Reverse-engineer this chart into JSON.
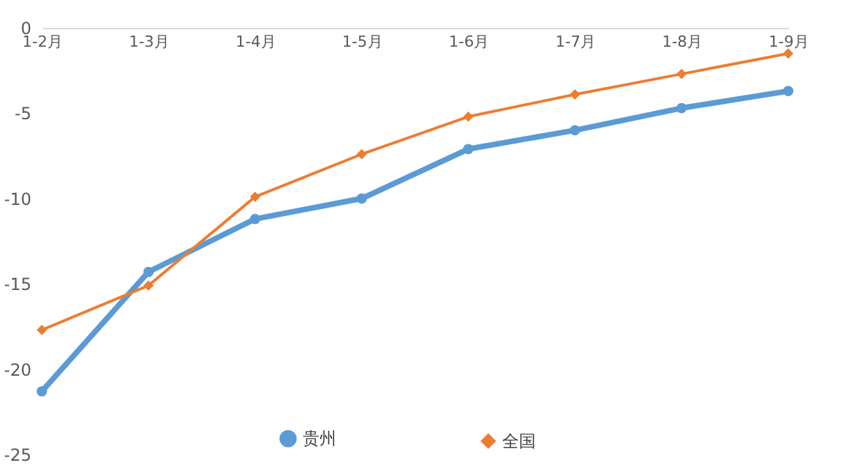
{
  "chart_data": {
    "type": "line",
    "categories": [
      "1-2月",
      "1-3月",
      "1-4月",
      "1-5月",
      "1-6月",
      "1-7月",
      "1-8月",
      "1-9月"
    ],
    "series": [
      {
        "name": "贵州",
        "color": "#5b9bd5",
        "marker": "circle",
        "values": [
          -21.3,
          -14.3,
          -11.2,
          -10.0,
          -7.1,
          -6.0,
          -4.7,
          -3.7
        ]
      },
      {
        "name": "全国",
        "color": "#ed7d31",
        "marker": "diamond",
        "values": [
          -17.7,
          -15.1,
          -9.9,
          -7.4,
          -5.2,
          -3.9,
          -2.7,
          -1.5
        ]
      }
    ],
    "ylim": [
      -25,
      0
    ],
    "yticks": [
      -25,
      -20,
      -15,
      -10,
      -5,
      0
    ],
    "grid": false,
    "legend": "bottom",
    "line_style": "solid"
  }
}
